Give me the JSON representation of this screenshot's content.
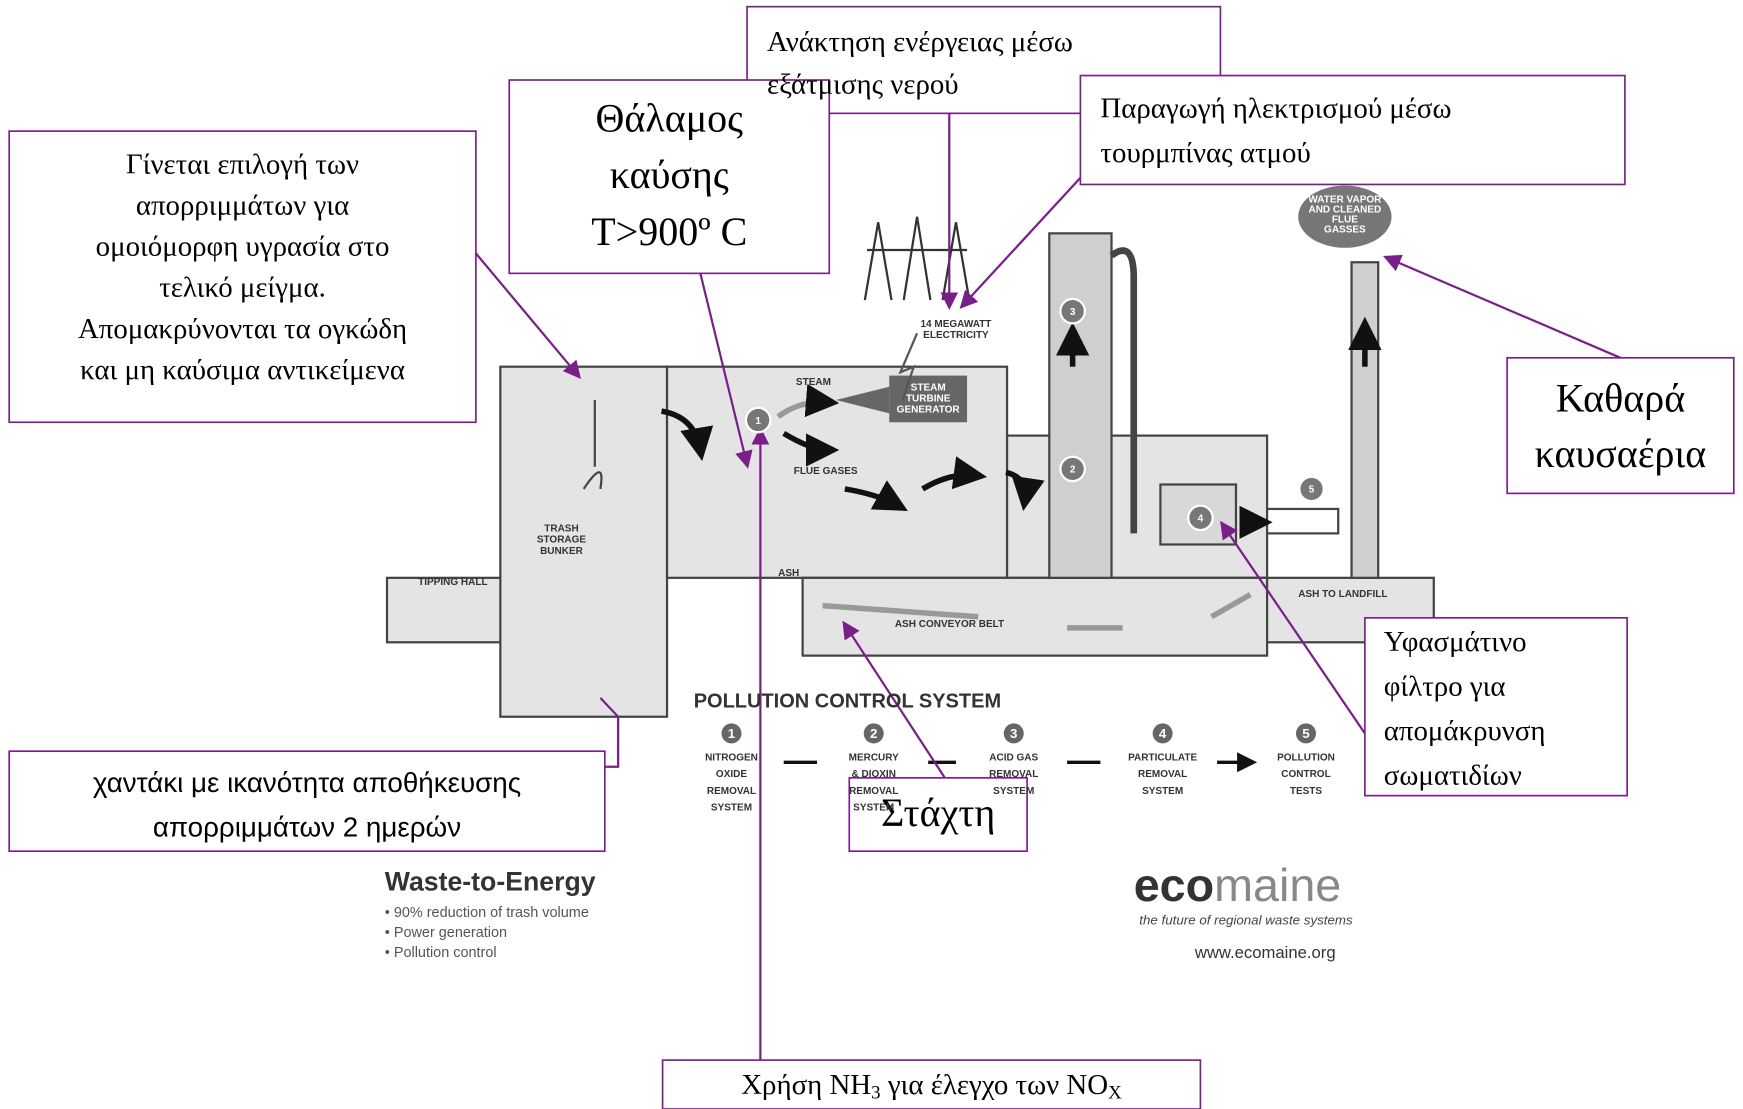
{
  "annotations": {
    "energy_recovery": [
      "Ανάκτηση ενέργειας μέσω",
      "εξάτμισης νερού"
    ],
    "combustion_chamber": [
      "Θάλαμος",
      "καύσης",
      "T>900º C"
    ],
    "electricity": [
      "Παραγωγή ηλεκτρισμού μέσω",
      "τουρμπίνας ατμού"
    ],
    "waste_selection": [
      "Γίνεται επιλογή των",
      "απορριμμάτων για",
      "ομοιόμορφη υγρασία στο",
      "τελικό μείγμα.",
      "Απομακρύνονται τα ογκώδη",
      "και μη καύσιμα αντικείμενα"
    ],
    "clean_gases": [
      "Καθαρά",
      "καυσαέρια"
    ],
    "fabric_filter": [
      "Υφασμάτινο",
      "φίλτρο για",
      "απομάκρυνση",
      "σωματιδίων"
    ],
    "pit": [
      "χαντάκι με ικανότητα αποθήκευσης",
      "απορριμμάτων 2 ημερών"
    ],
    "ash": "Στάχτη",
    "ammonia": [
      "Χρήση NH",
      "3",
      " για έλεγχο των NO",
      "X"
    ]
  },
  "diagram": {
    "electricity": [
      "14 MEGAWATT",
      "ELECTRICITY"
    ],
    "steam": "STEAM",
    "turbine": [
      "STEAM",
      "TURBINE",
      "GENERATOR"
    ],
    "flue_gases": "FLUE GASES",
    "bunker": [
      "TRASH",
      "STORAGE",
      "BUNKER"
    ],
    "tipping_hall": "TIPPING HALL",
    "ash": "ASH",
    "conveyor": "ASH CONVEYOR BELT",
    "landfill": "ASH TO LANDFILL",
    "vapor": [
      "WATER VAPOR",
      "AND CLEANED",
      "FLUE",
      "GASSES"
    ],
    "markers": [
      "1",
      "2",
      "3",
      "4",
      "5"
    ]
  },
  "pollution_control": {
    "title": "POLLUTION CONTROL SYSTEM",
    "steps": [
      {
        "number": "1",
        "lines": [
          "NITROGEN",
          "OXIDE",
          "REMOVAL",
          "SYSTEM"
        ]
      },
      {
        "number": "2",
        "lines": [
          "MERCURY",
          "& DIOXIN",
          "REMOVAL",
          "SYSTEM"
        ]
      },
      {
        "number": "3",
        "lines": [
          "ACID GAS",
          "REMOVAL",
          "SYSTEM"
        ]
      },
      {
        "number": "4",
        "lines": [
          "PARTICULATE",
          "REMOVAL",
          "SYSTEM"
        ]
      },
      {
        "number": "5",
        "lines": [
          "POLLUTION",
          "CONTROL",
          "TESTS"
        ]
      }
    ]
  },
  "footer": {
    "title": "Waste-to-Energy",
    "bullets": [
      "• 90% reduction of trash volume",
      "• Power generation",
      "• Pollution control"
    ],
    "logo_bold": "eco",
    "logo_light": "maine",
    "tagline": "the future of regional waste systems",
    "url": "www.ecomaine.org"
  }
}
